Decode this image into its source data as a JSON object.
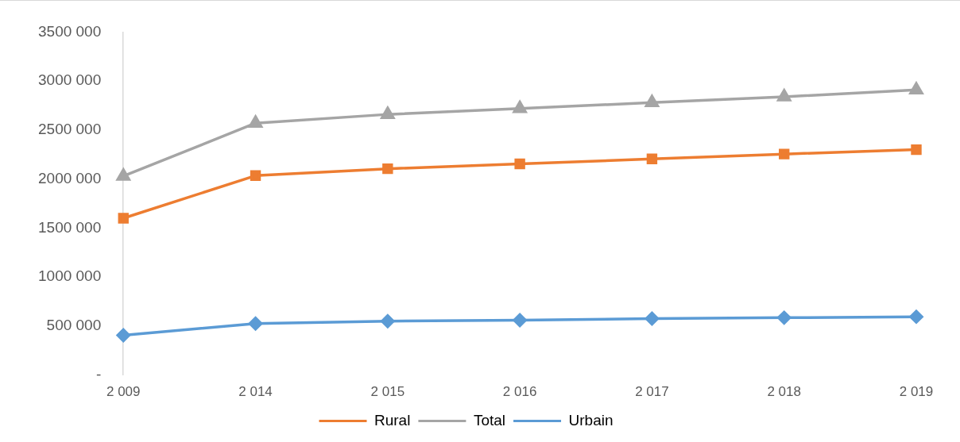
{
  "chart_data": {
    "type": "line",
    "categories": [
      "2 009",
      "2 014",
      "2 015",
      "2 016",
      "2 017",
      "2 018",
      "2 019"
    ],
    "series": [
      {
        "name": "Rural",
        "color": "#ed7d31",
        "marker": "square",
        "values": [
          1600000,
          2035000,
          2105000,
          2155000,
          2205000,
          2255000,
          2300000
        ]
      },
      {
        "name": "Total",
        "color": "#a5a5a5",
        "marker": "triangle",
        "values": [
          2030000,
          2570000,
          2660000,
          2720000,
          2780000,
          2840000,
          2910000
        ]
      },
      {
        "name": "Urbain",
        "color": "#5b9bd5",
        "marker": "diamond",
        "values": [
          405000,
          525000,
          550000,
          560000,
          575000,
          585000,
          595000
        ]
      }
    ],
    "ylim": [
      0,
      3500000
    ],
    "yticks": [
      {
        "value": 0,
        "label": "-"
      },
      {
        "value": 500000,
        "label": "500 000"
      },
      {
        "value": 1000000,
        "label": "1000 000"
      },
      {
        "value": 1500000,
        "label": "1500 000"
      },
      {
        "value": 2000000,
        "label": "2000 000"
      },
      {
        "value": 2500000,
        "label": "2500 000"
      },
      {
        "value": 3000000,
        "label": "3000 000"
      },
      {
        "value": 3500000,
        "label": "3500 000"
      }
    ],
    "grid": false,
    "legend": "bottom",
    "line_style": "solid"
  }
}
